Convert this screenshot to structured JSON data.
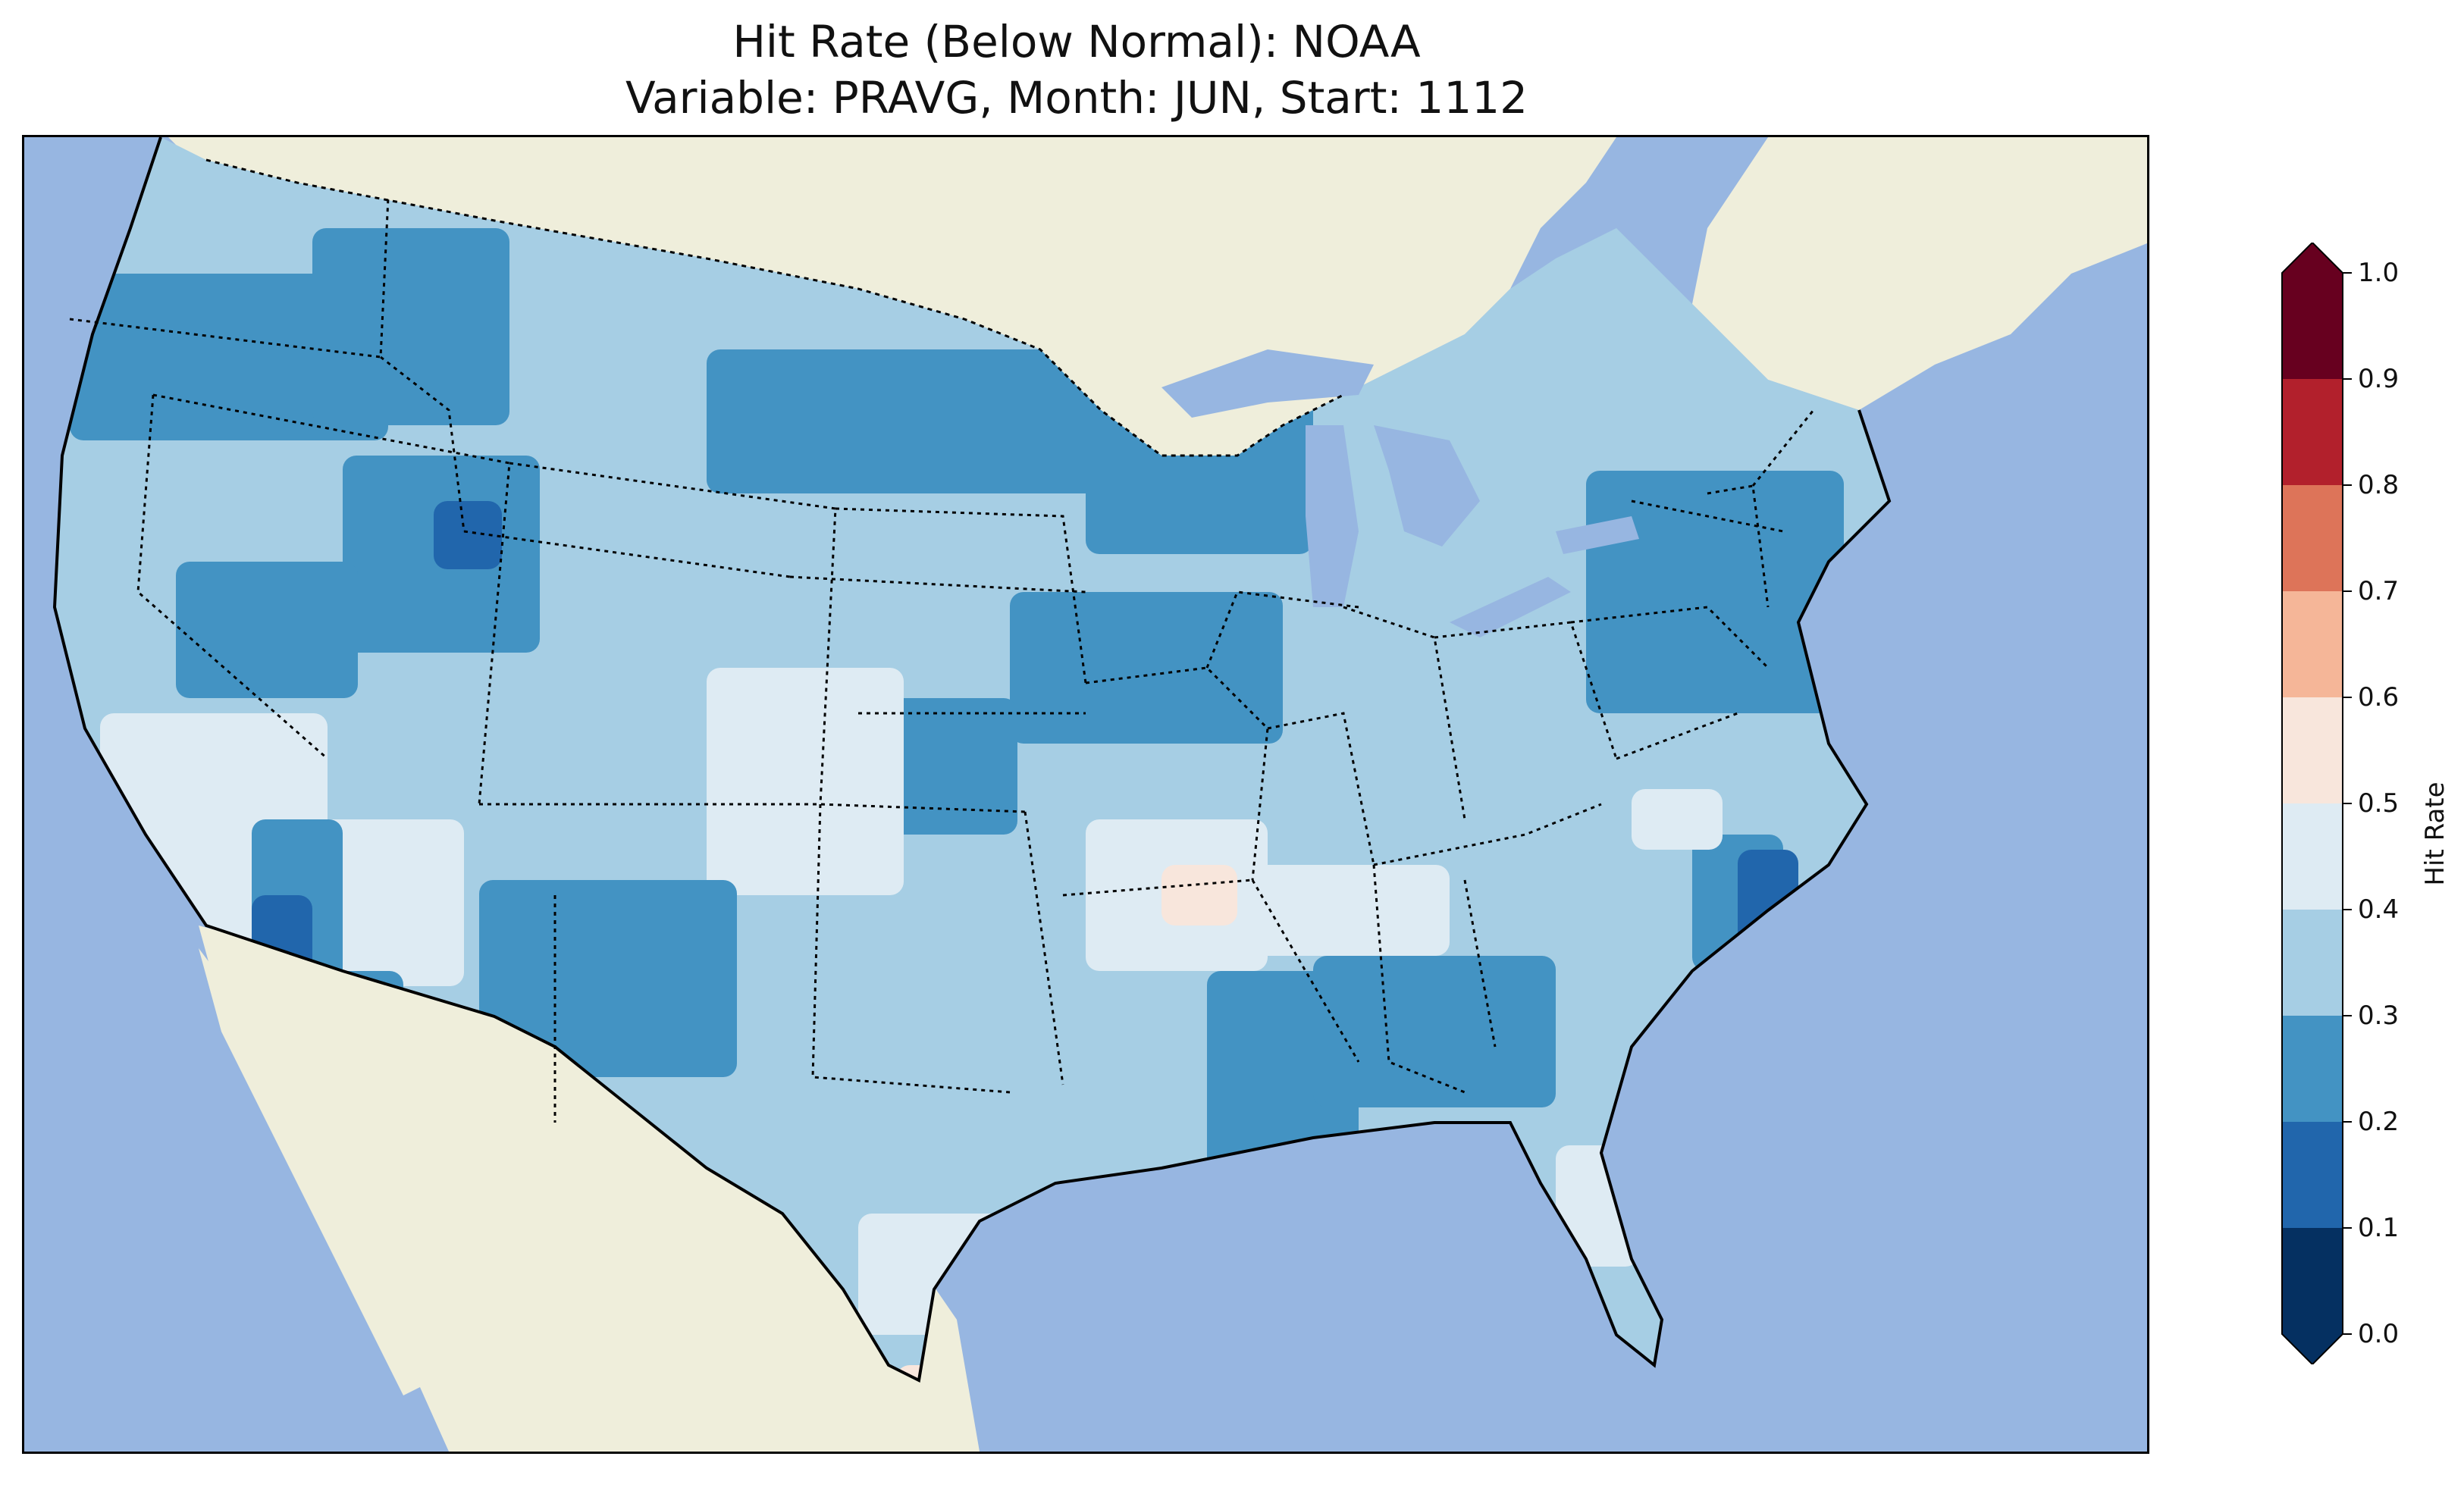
{
  "title": {
    "line1": "Hit Rate (Below Normal): NOAA",
    "line2": "Variable: PRAVG, Month: JUN, Start: 1112"
  },
  "colors": {
    "ocean": "#97b6e1",
    "land": "#efeedb",
    "lakes": "#97b6e1"
  },
  "colorbar": {
    "label": "Hit Rate",
    "ticks": [
      "0.0",
      "0.1",
      "0.2",
      "0.3",
      "0.4",
      "0.5",
      "0.6",
      "0.7",
      "0.8",
      "0.9",
      "1.0"
    ],
    "bins": [
      {
        "range": [
          0.0,
          0.1
        ],
        "color": "#053061"
      },
      {
        "range": [
          0.1,
          0.2
        ],
        "color": "#2166ac"
      },
      {
        "range": [
          0.2,
          0.3
        ],
        "color": "#4393c3"
      },
      {
        "range": [
          0.3,
          0.4
        ],
        "color": "#a6cee4"
      },
      {
        "range": [
          0.4,
          0.5
        ],
        "color": "#deebf3"
      },
      {
        "range": [
          0.5,
          0.6
        ],
        "color": "#f8e6dc"
      },
      {
        "range": [
          0.6,
          0.7
        ],
        "color": "#f5b698"
      },
      {
        "range": [
          0.7,
          0.8
        ],
        "color": "#dd7459"
      },
      {
        "range": [
          0.8,
          0.9
        ],
        "color": "#b2202c"
      },
      {
        "range": [
          0.9,
          1.0
        ],
        "color": "#67001f"
      }
    ],
    "extend": "both"
  },
  "map": {
    "region": "CONUS",
    "field": "Hit Rate",
    "dominant_bin": [
      0.3,
      0.4
    ]
  }
}
